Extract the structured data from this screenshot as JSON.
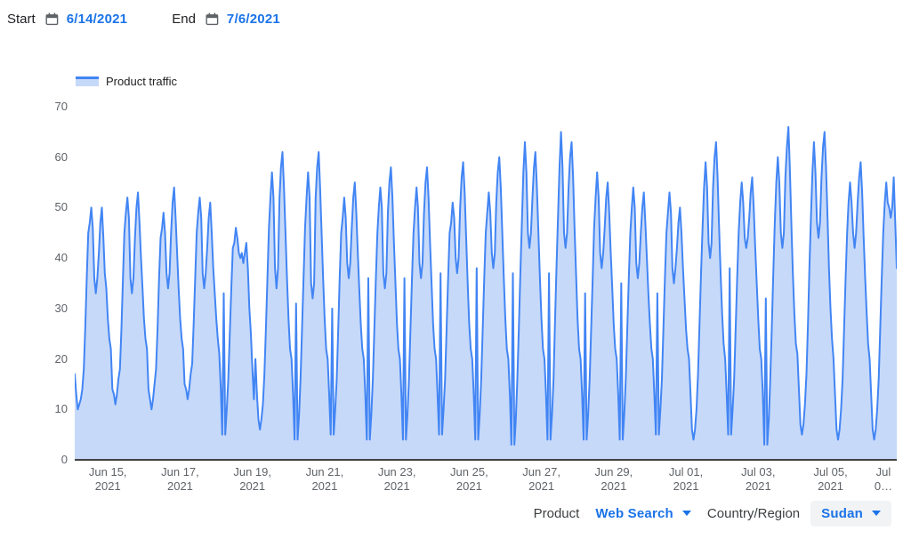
{
  "header": {
    "start_label": "Start",
    "start_date": "6/14/2021",
    "end_label": "End",
    "end_date": "7/6/2021"
  },
  "legend": {
    "label": "Product traffic"
  },
  "footer": {
    "product_label": "Product",
    "product_value": "Web Search",
    "region_label": "Country/Region",
    "region_value": "Sudan"
  },
  "icons": {
    "start_calendar": "calendar-icon",
    "end_calendar": "calendar-icon",
    "product_arrow": "chevron-down-icon",
    "region_arrow": "chevron-down-icon"
  },
  "colors": {
    "accent_blue": "#1a73e8",
    "line": "#4285f4",
    "fill": "#c6d9f9",
    "axis_text": "#5f6368",
    "text_dark": "#202124",
    "axis_line": "#424242",
    "pill_bg": "#f1f3f4"
  },
  "chart_data": {
    "type": "area",
    "title": "Product traffic",
    "xlabel": "",
    "ylabel": "",
    "x_unit": "hourly samples, 2021-06-14 through 2021-07-06",
    "ylim": [
      0,
      70
    ],
    "y_ticks": [
      0,
      10,
      20,
      30,
      40,
      50,
      60,
      70
    ],
    "grid": false,
    "legend_position": "top-left",
    "points_per_day": 24,
    "x_ticks": [
      {
        "line1": "Jun 15,",
        "line2": "2021",
        "index": 22
      },
      {
        "line1": "Jun 17,",
        "line2": "2021",
        "index": 70
      },
      {
        "line1": "Jun 19,",
        "line2": "2021",
        "index": 118
      },
      {
        "line1": "Jun 21,",
        "line2": "2021",
        "index": 166
      },
      {
        "line1": "Jun 23,",
        "line2": "2021",
        "index": 214
      },
      {
        "line1": "Jun 25,",
        "line2": "2021",
        "index": 262
      },
      {
        "line1": "Jun 27,",
        "line2": "2021",
        "index": 310
      },
      {
        "line1": "Jun 29,",
        "line2": "2021",
        "index": 358
      },
      {
        "line1": "Jul 01,",
        "line2": "2021",
        "index": 406
      },
      {
        "line1": "Jul 03,",
        "line2": "2021",
        "index": 454
      },
      {
        "line1": "Jul 05,",
        "line2": "2021",
        "index": 502
      },
      {
        "line1": "Jul",
        "line2": "0…",
        "index": 550
      }
    ],
    "values": [
      17,
      13,
      10,
      11,
      12,
      14,
      18,
      26,
      36,
      45,
      47,
      50,
      46,
      36,
      33,
      36,
      41,
      47,
      50,
      44,
      37,
      34,
      28,
      24,
      22,
      14,
      13,
      11,
      13,
      16,
      18,
      26,
      36,
      45,
      49,
      52,
      48,
      36,
      33,
      36,
      44,
      50,
      53,
      47,
      40,
      34,
      28,
      24,
      22,
      14,
      12,
      10,
      12,
      15,
      18,
      26,
      36,
      44,
      46,
      49,
      45,
      37,
      34,
      37,
      45,
      51,
      54,
      48,
      41,
      34,
      28,
      24,
      22,
      15,
      14,
      12,
      14,
      17,
      19,
      27,
      36,
      45,
      49,
      52,
      48,
      37,
      34,
      37,
      42,
      48,
      51,
      45,
      38,
      33,
      28,
      24,
      21,
      14,
      5,
      33,
      5,
      10,
      16,
      25,
      34,
      42,
      43,
      46,
      44,
      41,
      40,
      41,
      39,
      41,
      43,
      38,
      30,
      25,
      18,
      12,
      20,
      13,
      8,
      6,
      8,
      11,
      17,
      26,
      36,
      46,
      52,
      57,
      52,
      38,
      34,
      38,
      52,
      58,
      61,
      54,
      45,
      36,
      28,
      22,
      20,
      13,
      4,
      31,
      4,
      9,
      16,
      26,
      36,
      46,
      52,
      57,
      52,
      35,
      32,
      35,
      52,
      58,
      61,
      54,
      45,
      36,
      28,
      22,
      20,
      13,
      5,
      30,
      5,
      10,
      16,
      26,
      36,
      45,
      48,
      52,
      48,
      39,
      36,
      39,
      46,
      52,
      55,
      49,
      41,
      34,
      27,
      22,
      20,
      13,
      4,
      36,
      4,
      9,
      16,
      26,
      36,
      45,
      50,
      54,
      50,
      37,
      34,
      37,
      49,
      55,
      58,
      52,
      43,
      35,
      27,
      22,
      20,
      13,
      4,
      36,
      4,
      9,
      16,
      26,
      36,
      45,
      50,
      54,
      50,
      39,
      36,
      39,
      49,
      55,
      58,
      52,
      43,
      35,
      27,
      22,
      20,
      13,
      5,
      37,
      5,
      10,
      16,
      26,
      36,
      45,
      47,
      51,
      48,
      40,
      37,
      40,
      50,
      56,
      59,
      53,
      44,
      35,
      27,
      22,
      20,
      13,
      4,
      38,
      4,
      9,
      16,
      26,
      36,
      45,
      49,
      53,
      49,
      41,
      38,
      41,
      51,
      57,
      60,
      54,
      45,
      36,
      28,
      22,
      20,
      13,
      3,
      37,
      3,
      8,
      16,
      26,
      37,
      47,
      57,
      63,
      57,
      45,
      42,
      45,
      52,
      58,
      61,
      54,
      45,
      36,
      28,
      22,
      20,
      13,
      4,
      37,
      4,
      9,
      16,
      27,
      38,
      48,
      58,
      65,
      58,
      45,
      42,
      45,
      54,
      60,
      63,
      56,
      46,
      37,
      28,
      22,
      20,
      13,
      4,
      33,
      4,
      9,
      16,
      26,
      36,
      46,
      52,
      57,
      52,
      41,
      38,
      41,
      46,
      52,
      55,
      49,
      41,
      34,
      27,
      22,
      20,
      13,
      4,
      35,
      4,
      9,
      16,
      26,
      36,
      45,
      50,
      54,
      50,
      39,
      36,
      39,
      45,
      50,
      53,
      47,
      40,
      33,
      27,
      22,
      20,
      13,
      5,
      33,
      5,
      10,
      16,
      26,
      36,
      45,
      49,
      53,
      49,
      38,
      35,
      38,
      42,
      47,
      50,
      45,
      38,
      32,
      26,
      22,
      20,
      13,
      6,
      4,
      6,
      10,
      17,
      27,
      37,
      46,
      54,
      59,
      54,
      43,
      40,
      43,
      54,
      60,
      63,
      56,
      46,
      37,
      29,
      23,
      20,
      13,
      5,
      38,
      5,
      10,
      16,
      26,
      36,
      45,
      51,
      55,
      51,
      44,
      42,
      44,
      48,
      53,
      56,
      50,
      42,
      35,
      28,
      22,
      20,
      13,
      3,
      32,
      3,
      8,
      16,
      26,
      37,
      47,
      55,
      60,
      55,
      45,
      42,
      45,
      56,
      62,
      66,
      58,
      47,
      37,
      29,
      23,
      21,
      14,
      7,
      5,
      7,
      11,
      17,
      27,
      38,
      48,
      57,
      63,
      57,
      47,
      44,
      47,
      56,
      62,
      65,
      58,
      48,
      38,
      30,
      24,
      20,
      13,
      6,
      4,
      6,
      10,
      16,
      26,
      36,
      45,
      51,
      55,
      51,
      45,
      42,
      45,
      51,
      56,
      59,
      53,
      44,
      36,
      29,
      23,
      20,
      13,
      6,
      4,
      6,
      10,
      16,
      26,
      36,
      45,
      51,
      55,
      51,
      50,
      48,
      50,
      56,
      47,
      38
    ]
  }
}
